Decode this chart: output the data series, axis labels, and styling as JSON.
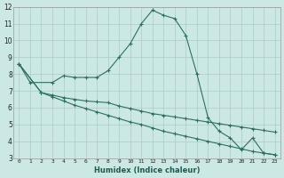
{
  "xlabel": "Humidex (Indice chaleur)",
  "bg_color": "#cce8e4",
  "grid_color": "#aaccca",
  "line_color": "#2e6e62",
  "xmin": 0,
  "xmax": 23,
  "ymin": 3,
  "ymax": 12,
  "line1_x": [
    0,
    1,
    3,
    4,
    5,
    6,
    7,
    8,
    9,
    10,
    11,
    12,
    13,
    14,
    15,
    16,
    17,
    18,
    19,
    20,
    21,
    22,
    23
  ],
  "line1_y": [
    8.6,
    7.5,
    7.5,
    7.9,
    7.8,
    7.8,
    7.8,
    8.2,
    9.0,
    9.8,
    11.0,
    11.8,
    11.5,
    11.3,
    10.3,
    8.0,
    5.4,
    4.6,
    4.2,
    3.5,
    4.2,
    3.3,
    3.2
  ],
  "line2_x": [
    0,
    2,
    3,
    4,
    5,
    6,
    7,
    8,
    9,
    10,
    11,
    12,
    13,
    14,
    15,
    16,
    17,
    18,
    19,
    20,
    21,
    22,
    23
  ],
  "line2_y": [
    8.6,
    6.9,
    6.75,
    6.6,
    6.5,
    6.4,
    6.35,
    6.3,
    6.1,
    5.95,
    5.8,
    5.65,
    5.55,
    5.45,
    5.35,
    5.25,
    5.15,
    5.05,
    4.95,
    4.85,
    4.75,
    4.65,
    4.55
  ],
  "line3_x": [
    0,
    2,
    3,
    4,
    5,
    6,
    7,
    8,
    9,
    10,
    11,
    12,
    13,
    14,
    15,
    16,
    17,
    18,
    19,
    20,
    21,
    22,
    23
  ],
  "line3_y": [
    8.6,
    6.9,
    6.65,
    6.4,
    6.15,
    5.95,
    5.75,
    5.55,
    5.35,
    5.15,
    5.0,
    4.8,
    4.6,
    4.45,
    4.3,
    4.15,
    4.0,
    3.85,
    3.7,
    3.55,
    3.4,
    3.3,
    3.2
  ]
}
